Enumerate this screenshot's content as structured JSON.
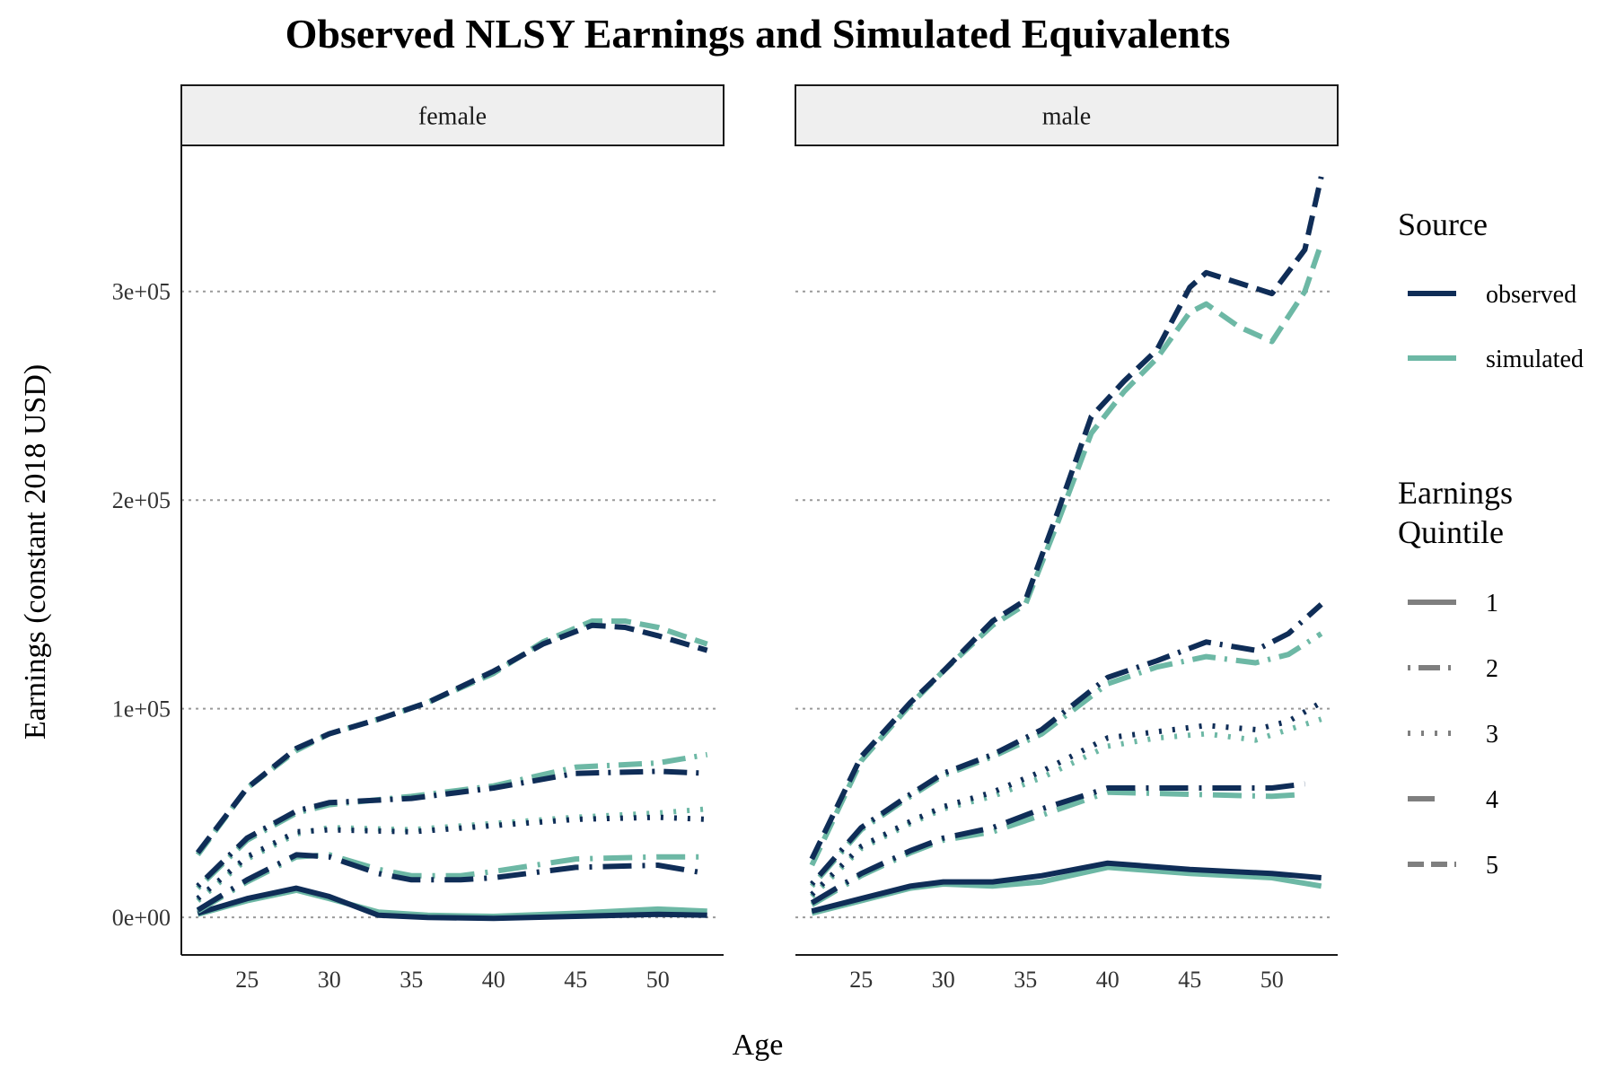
{
  "chart_data": {
    "type": "line",
    "title": "Observed NLSY Earnings and Simulated Equivalents",
    "xlabel": "Age",
    "ylabel": "Earnings (constant 2018 USD)",
    "xlim": [
      21,
      54
    ],
    "ylim": [
      -18000,
      370000
    ],
    "x_ticks": [
      25,
      30,
      35,
      40,
      45,
      50
    ],
    "y_ticks": [
      0,
      100000,
      200000,
      300000
    ],
    "y_tick_labels": [
      "0e+00",
      "1e+05",
      "2e+05",
      "3e+05"
    ],
    "grid": "horizontal dotted",
    "legend_position": "right",
    "legend": {
      "source_title": "Source",
      "source_entries": [
        {
          "label": "observed",
          "color": "#0f2d57"
        },
        {
          "label": "simulated",
          "color": "#6db8a5"
        }
      ],
      "quintile_title_lines": [
        "Earnings",
        "Quintile"
      ],
      "quintile_entries": [
        {
          "label": "1",
          "dash": "none"
        },
        {
          "label": "2",
          "dash": "dotdash"
        },
        {
          "label": "3",
          "dash": "dotted"
        },
        {
          "label": "4",
          "dash": "longdash-gap"
        },
        {
          "label": "5",
          "dash": "dashed"
        }
      ],
      "legend_key_color": "#7f7f7f"
    },
    "colors": {
      "observed": "#0f2d57",
      "simulated": "#6db8a5"
    },
    "panels": [
      {
        "name": "female",
        "series": [
          {
            "source": "simulated",
            "quintile": 1,
            "x": [
              22,
              25,
              28,
              30,
              33,
              36,
              40,
              45,
              50,
              53
            ],
            "y": [
              1500,
              8000,
              13000,
              9000,
              2500,
              1000,
              500,
              2000,
              4000,
              3000
            ]
          },
          {
            "source": "observed",
            "quintile": 1,
            "x": [
              22,
              25,
              28,
              30,
              33,
              36,
              40,
              45,
              50,
              53
            ],
            "y": [
              2000,
              9000,
              14000,
              10000,
              1000,
              0,
              -500,
              500,
              1500,
              1000
            ]
          },
          {
            "source": "simulated",
            "quintile": 4,
            "x": [
              22,
              25,
              28,
              30,
              33,
              35,
              38,
              40,
              45,
              50,
              53
            ],
            "y": [
              3000,
              17000,
              29000,
              30000,
              23000,
              20000,
              20000,
              22000,
              28000,
              29000,
              29000
            ]
          },
          {
            "source": "observed",
            "quintile": 4,
            "x": [
              22,
              25,
              28,
              30,
              33,
              35,
              38,
              40,
              45,
              50,
              53
            ],
            "y": [
              3500,
              18000,
              30000,
              29000,
              21000,
              18000,
              18000,
              19000,
              24000,
              25000,
              21000
            ]
          },
          {
            "source": "simulated",
            "quintile": 3,
            "x": [
              22,
              25,
              28,
              30,
              35,
              40,
              45,
              50,
              53
            ],
            "y": [
              8000,
              28000,
              40000,
              43000,
              42000,
              45000,
              48000,
              50000,
              52000
            ]
          },
          {
            "source": "observed",
            "quintile": 3,
            "x": [
              22,
              25,
              28,
              30,
              35,
              40,
              45,
              50,
              53
            ],
            "y": [
              9000,
              29000,
              41000,
              42000,
              41000,
              44000,
              47000,
              48000,
              47000
            ]
          },
          {
            "source": "simulated",
            "quintile": 2,
            "x": [
              22,
              25,
              28,
              30,
              35,
              40,
              45,
              50,
              53
            ],
            "y": [
              14000,
              37000,
              50000,
              54000,
              58000,
              63000,
              72000,
              74000,
              78000
            ]
          },
          {
            "source": "observed",
            "quintile": 2,
            "x": [
              22,
              25,
              28,
              30,
              35,
              40,
              45,
              50,
              53
            ],
            "y": [
              15000,
              38000,
              51000,
              55000,
              57000,
              62000,
              69000,
              70000,
              69000
            ]
          },
          {
            "source": "simulated",
            "quintile": 5,
            "x": [
              22,
              25,
              28,
              30,
              33,
              36,
              40,
              43,
              46,
              48,
              50,
              53
            ],
            "y": [
              30000,
              62000,
              80000,
              88000,
              95000,
              103000,
              117000,
              132000,
              142000,
              142000,
              139000,
              131000
            ]
          },
          {
            "source": "observed",
            "quintile": 5,
            "x": [
              22,
              25,
              28,
              30,
              33,
              36,
              40,
              43,
              46,
              48,
              50,
              53
            ],
            "y": [
              31000,
              62000,
              81000,
              88000,
              95000,
              103000,
              118000,
              131000,
              140000,
              139000,
              135000,
              128000
            ]
          }
        ]
      },
      {
        "name": "male",
        "series": [
          {
            "source": "simulated",
            "quintile": 1,
            "x": [
              22,
              25,
              28,
              30,
              33,
              36,
              40,
              45,
              50,
              53
            ],
            "y": [
              2000,
              8000,
              14000,
              16000,
              15000,
              17000,
              24000,
              21000,
              19000,
              15000
            ]
          },
          {
            "source": "observed",
            "quintile": 1,
            "x": [
              22,
              25,
              28,
              30,
              33,
              36,
              40,
              45,
              50,
              53
            ],
            "y": [
              3000,
              9000,
              15000,
              17000,
              17000,
              20000,
              26000,
              23000,
              21000,
              19000
            ]
          },
          {
            "source": "simulated",
            "quintile": 4,
            "x": [
              22,
              25,
              28,
              30,
              33,
              36,
              40,
              45,
              50,
              52
            ],
            "y": [
              6000,
              20000,
              31000,
              37000,
              41000,
              49000,
              60000,
              59000,
              58000,
              59000
            ]
          },
          {
            "source": "observed",
            "quintile": 4,
            "x": [
              22,
              25,
              28,
              30,
              33,
              36,
              40,
              45,
              50,
              52
            ],
            "y": [
              7000,
              21000,
              32000,
              38000,
              43000,
              52000,
              62000,
              62000,
              62000,
              64000
            ]
          },
          {
            "source": "simulated",
            "quintile": 3,
            "x": [
              22,
              25,
              28,
              30,
              33,
              36,
              40,
              43,
              46,
              49,
              51,
              53
            ],
            "y": [
              10000,
              33000,
              45000,
              52000,
              58000,
              67000,
              82000,
              86000,
              88000,
              85000,
              90000,
              95000
            ]
          },
          {
            "source": "observed",
            "quintile": 3,
            "x": [
              22,
              25,
              28,
              30,
              33,
              36,
              40,
              43,
              46,
              49,
              51,
              53
            ],
            "y": [
              11000,
              34000,
              46000,
              53000,
              60000,
              70000,
              86000,
              89000,
              92000,
              90000,
              94000,
              103000
            ]
          },
          {
            "source": "simulated",
            "quintile": 2,
            "x": [
              22,
              25,
              28,
              30,
              33,
              36,
              40,
              43,
              46,
              49,
              51,
              53
            ],
            "y": [
              15000,
              42000,
              58000,
              68000,
              77000,
              88000,
              112000,
              120000,
              125000,
              122000,
              126000,
              136000
            ]
          },
          {
            "source": "observed",
            "quintile": 2,
            "x": [
              22,
              25,
              28,
              30,
              33,
              36,
              40,
              43,
              46,
              49,
              51,
              53
            ],
            "y": [
              16000,
              43000,
              59000,
              69000,
              78000,
              90000,
              115000,
              123000,
              132000,
              128000,
              136000,
              150000
            ]
          },
          {
            "source": "simulated",
            "quintile": 5,
            "x": [
              22,
              25,
              28,
              30,
              33,
              35,
              37,
              39,
              41,
              43,
              45,
              46,
              48,
              50,
              52,
              53
            ],
            "y": [
              25000,
              75000,
              102000,
              118000,
              140000,
              150000,
              190000,
              232000,
              252000,
              268000,
              290000,
              294000,
              283000,
              276000,
              300000,
              323000
            ]
          },
          {
            "source": "observed",
            "quintile": 5,
            "x": [
              22,
              25,
              28,
              30,
              33,
              35,
              37,
              39,
              41,
              43,
              45,
              46,
              48,
              50,
              52,
              53
            ],
            "y": [
              28000,
              77000,
              103000,
              118000,
              142000,
              152000,
              195000,
              240000,
              257000,
              272000,
              302000,
              309000,
              304000,
              299000,
              320000,
              355000
            ]
          }
        ]
      }
    ]
  }
}
